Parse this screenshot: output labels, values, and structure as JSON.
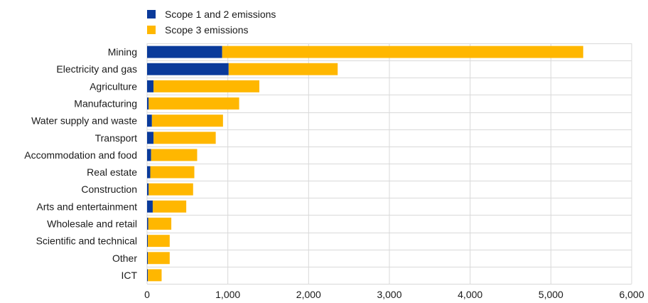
{
  "chart_data": {
    "type": "bar",
    "orientation": "horizontal",
    "stacked": true,
    "title": "",
    "xlabel": "",
    "ylabel": "",
    "xlim": [
      0,
      6000
    ],
    "x_ticks": [
      "0",
      "1,000",
      "2,000",
      "3,000",
      "4,000",
      "5,000",
      "6,000"
    ],
    "x_tick_values": [
      0,
      1000,
      2000,
      3000,
      4000,
      5000,
      6000
    ],
    "grid": true,
    "legend_position": "top-left",
    "categories": [
      "Mining",
      "Electricity and gas",
      "Agriculture",
      "Manufacturing",
      "Water supply and waste",
      "Transport",
      "Accommodation and food",
      "Real estate",
      "Construction",
      "Arts and entertainment",
      "Wholesale and retail",
      "Scientific and technical",
      "Other",
      "ICT"
    ],
    "series": [
      {
        "name": "Scope 1 and 2 emissions",
        "color": "#0a3a9a",
        "values": [
          930,
          1010,
          80,
          20,
          60,
          80,
          50,
          40,
          20,
          70,
          15,
          10,
          10,
          10
        ]
      },
      {
        "name": "Scope 3 emissions",
        "color": "#ffb700",
        "values": [
          4470,
          1350,
          1310,
          1120,
          880,
          770,
          570,
          545,
          550,
          415,
          285,
          270,
          270,
          170
        ]
      }
    ]
  }
}
